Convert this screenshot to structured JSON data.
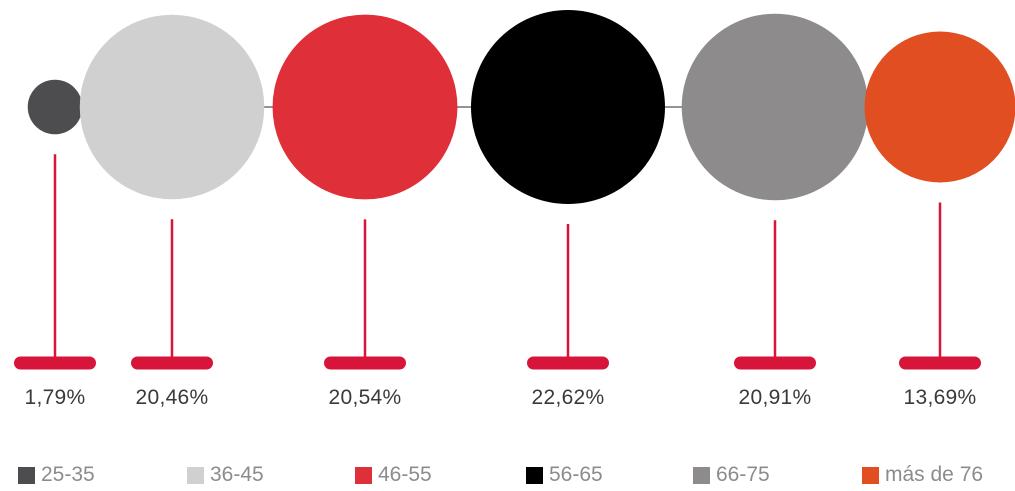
{
  "chart_data": {
    "type": "bubble",
    "title": "",
    "categories": [
      "25-35",
      "36-45",
      "46-55",
      "56-65",
      "66-75",
      "más de 76"
    ],
    "values": [
      1.79,
      20.46,
      20.54,
      22.62,
      20.91,
      13.69
    ],
    "value_labels": [
      "1,79%",
      "20,46%",
      "20,54%",
      "22,62%",
      "20,91%",
      "13,69%"
    ],
    "colors": [
      "#4d4d4f",
      "#d0d0d0",
      "#df2f39",
      "#000000",
      "#8d8b8c",
      "#e14e21"
    ],
    "connector_color": "#d7153a",
    "legend_position": "bottom"
  }
}
